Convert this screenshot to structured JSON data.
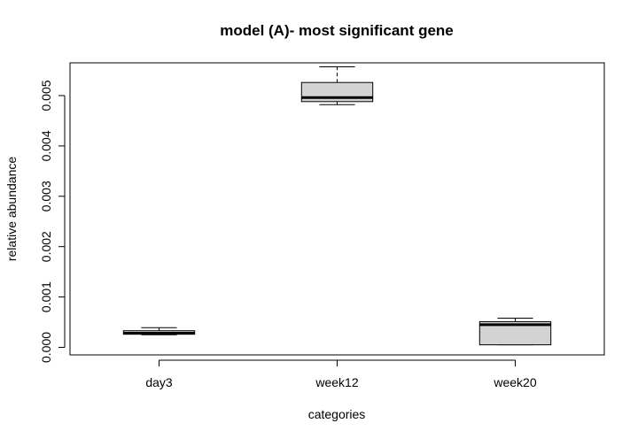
{
  "chart_data": {
    "type": "boxplot",
    "title": "model (A)- most significant gene",
    "xlabel": "categories",
    "ylabel": "relative abundance",
    "ylim": [
      -0.00015,
      0.00565
    ],
    "y_ticks": [
      "0.000",
      "0.001",
      "0.002",
      "0.003",
      "0.004",
      "0.005"
    ],
    "categories": [
      "day3",
      "week12",
      "week20"
    ],
    "boxes": [
      {
        "name": "day3",
        "whisker_low": 0.00025,
        "q1": 0.00026,
        "median": 0.00028,
        "q3": 0.00033,
        "whisker_high": 0.00039
      },
      {
        "name": "week12",
        "whisker_low": 0.00482,
        "q1": 0.00488,
        "median": 0.00496,
        "q3": 0.00526,
        "whisker_high": 0.00557
      },
      {
        "name": "week20",
        "whisker_low": 5e-05,
        "q1": 5e-05,
        "median": 0.00045,
        "q3": 0.00051,
        "whisker_high": 0.00058
      }
    ],
    "box_fill": "#d3d3d3",
    "grid": false,
    "legend": "none"
  }
}
